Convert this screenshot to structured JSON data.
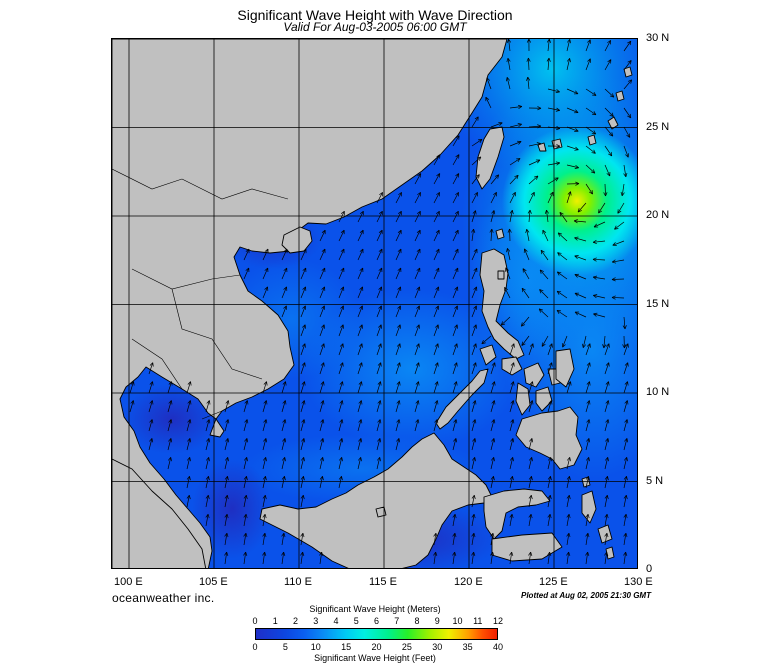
{
  "header": {
    "title": "Significant Wave Height with Wave Direction",
    "subtitle": "Valid For Aug-03-2005 06:00 GMT"
  },
  "map": {
    "lon_labels": [
      "100 E",
      "105 E",
      "110 E",
      "115 E",
      "120 E",
      "125 E",
      "130 E"
    ],
    "lat_labels": [
      "30 N",
      "25 N",
      "20 N",
      "15 N",
      "10 N",
      "5 N",
      "0"
    ],
    "lon_range": [
      99,
      130
    ],
    "lat_range": [
      0,
      30
    ],
    "colors": {
      "land": "#c0c0c0",
      "ocean": "#0a50ea",
      "grid": "#000000",
      "arrow": "#000000"
    }
  },
  "footer": {
    "brand": "oceanweather inc.",
    "plotted": "Plotted at Aug 02, 2005 21:30 GMT"
  },
  "colorbar": {
    "meters_title": "Significant Wave Height (Meters)",
    "feet_title": "Significant Wave Height (Feet)",
    "meters_ticks": [
      "0",
      "1",
      "2",
      "3",
      "4",
      "5",
      "6",
      "7",
      "8",
      "9",
      "10",
      "11",
      "12"
    ],
    "feet_ticks": [
      "0",
      "5",
      "10",
      "15",
      "20",
      "25",
      "30",
      "35",
      "40"
    ]
  }
}
